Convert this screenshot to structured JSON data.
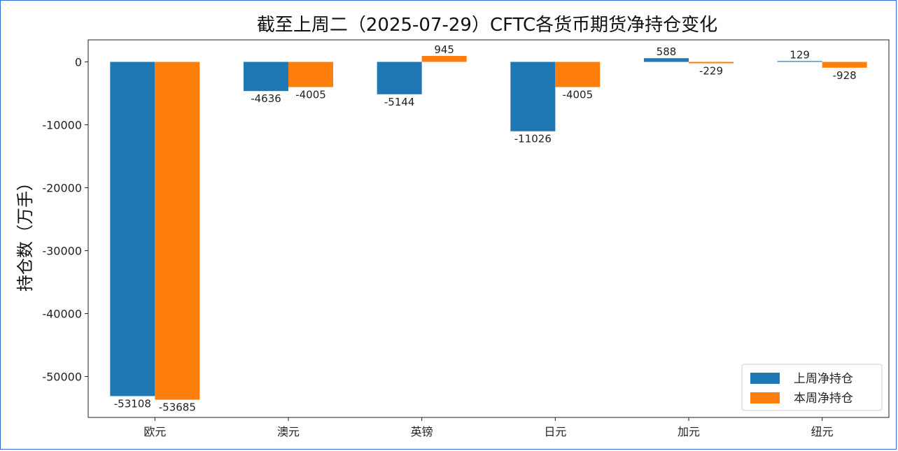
{
  "chart_data": {
    "type": "bar",
    "title": "截至上周二（2025-07-29）CFTC各货币期货净持仓变化",
    "xlabel": "",
    "ylabel": "持仓数（万手）",
    "categories": [
      "欧元",
      "澳元",
      "英镑",
      "日元",
      "加元",
      "纽元"
    ],
    "series": [
      {
        "name": "上周净持仓",
        "color": "#1f77b4",
        "values": [
          -53108,
          -4636,
          -5144,
          -11026,
          588,
          129
        ]
      },
      {
        "name": "本周净持仓",
        "color": "#ff7f0e",
        "values": [
          -53685,
          -4005,
          945,
          -4005,
          -229,
          -928
        ]
      }
    ],
    "ylim": [
      -56500,
      3500
    ],
    "yticks": [
      0,
      -10000,
      -20000,
      -30000,
      -40000,
      -50000
    ],
    "grid": false,
    "legend_position": "bottom-right"
  }
}
